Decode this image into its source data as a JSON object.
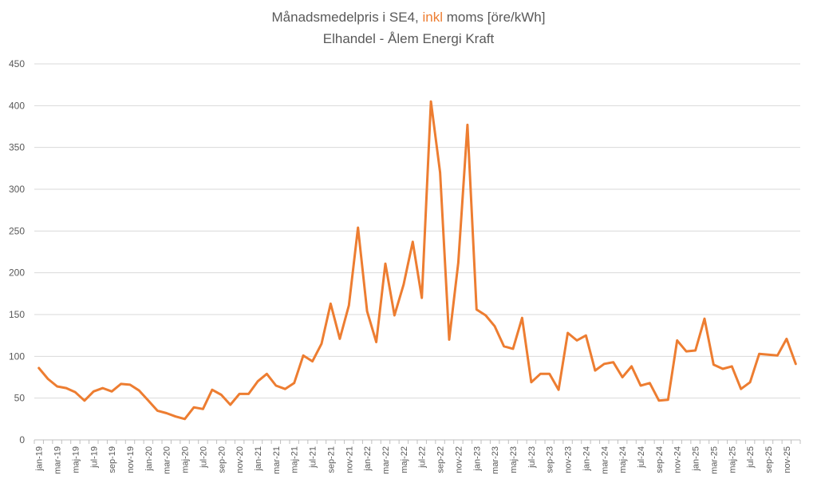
{
  "chart_data": {
    "type": "line",
    "title": {
      "prefix": "Månadsmedelpris i SE4, ",
      "highlight": "inkl",
      "suffix": " moms [öre/kWh]",
      "subtitle": "Elhandel - Ålem Energi Kraft"
    },
    "xlabel": "",
    "ylabel": "",
    "ylim": [
      0,
      450
    ],
    "yticks": [
      0,
      50,
      100,
      150,
      200,
      250,
      300,
      350,
      400,
      450
    ],
    "grid": true,
    "colors": {
      "line": "#ED7D31",
      "grid": "#D9D9D9",
      "text": "#595959"
    },
    "x": [
      "jan-19",
      "feb-19",
      "mar-19",
      "apr-19",
      "maj-19",
      "jun-19",
      "jul-19",
      "aug-19",
      "sep-19",
      "okt-19",
      "nov-19",
      "dec-19",
      "jan-20",
      "feb-20",
      "mar-20",
      "apr-20",
      "maj-20",
      "jun-20",
      "jul-20",
      "aug-20",
      "sep-20",
      "okt-20",
      "nov-20",
      "dec-20",
      "jan-21",
      "feb-21",
      "mar-21",
      "apr-21",
      "maj-21",
      "jun-21",
      "jul-21",
      "aug-21",
      "sep-21",
      "okt-21",
      "nov-21",
      "dec-21",
      "jan-22",
      "feb-22",
      "mar-22",
      "apr-22",
      "maj-22",
      "jun-22",
      "jul-22",
      "aug-22",
      "sep-22",
      "okt-22",
      "nov-22",
      "dec-22",
      "jan-23",
      "feb-23",
      "mar-23",
      "apr-23",
      "maj-23",
      "jun-23",
      "jul-23",
      "aug-23",
      "sep-23",
      "okt-23",
      "nov-23",
      "dec-23",
      "jan-24",
      "feb-24",
      "mar-24",
      "apr-24",
      "maj-24",
      "jun-24",
      "jul-24",
      "aug-24",
      "sep-24",
      "okt-24",
      "nov-24",
      "dec-24",
      "jan-25",
      "feb-25",
      "mar-25",
      "apr-25",
      "maj-25",
      "jun-25",
      "jul-25",
      "aug-25",
      "sep-25",
      "okt-25",
      "nov-25",
      "dec-25"
    ],
    "xtick_labels": [
      "jan-19",
      "mar-19",
      "maj-19",
      "jul-19",
      "sep-19",
      "nov-19",
      "jan-20",
      "mar-20",
      "maj-20",
      "jul-20",
      "sep-20",
      "nov-20",
      "jan-21",
      "mar-21",
      "maj-21",
      "jul-21",
      "sep-21",
      "nov-21",
      "jan-22",
      "mar-22",
      "maj-22",
      "jul-22",
      "sep-22",
      "nov-22",
      "jan-23",
      "mar-23",
      "maj-23",
      "jul-23",
      "sep-23",
      "nov-23",
      "jan-24",
      "mar-24",
      "maj-24",
      "jul-24",
      "sep-24",
      "nov-24",
      "jan-25",
      "mar-25",
      "maj-25",
      "jul-25",
      "sep-25",
      "nov-25"
    ],
    "series": [
      {
        "values": [
          86,
          73,
          64,
          62,
          57,
          47,
          58,
          62,
          58,
          67,
          66,
          59,
          47,
          35,
          32,
          28,
          25,
          39,
          37,
          60,
          54,
          42,
          55,
          55,
          70,
          79,
          65,
          61,
          68,
          101,
          94,
          115,
          163,
          121,
          161,
          254,
          154,
          117,
          211,
          149,
          186,
          237,
          170,
          405,
          320,
          120,
          212,
          377,
          156,
          149,
          136,
          112,
          109,
          146,
          69,
          79,
          79,
          60,
          128,
          119,
          125,
          83,
          91,
          93,
          75,
          88,
          65,
          68,
          47,
          48,
          119,
          106,
          107,
          145,
          90,
          85,
          88,
          61,
          69,
          103,
          102,
          101,
          121,
          91
        ]
      }
    ]
  }
}
